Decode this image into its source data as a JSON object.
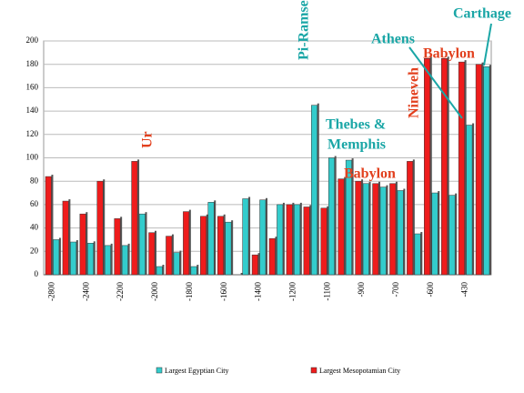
{
  "chart_data": {
    "type": "bar",
    "categories": [
      "-2800",
      null,
      "-2400",
      null,
      "-2200",
      null,
      "-2000",
      null,
      "-1800",
      null,
      "-1600",
      null,
      "-1400",
      null,
      "-1200",
      null,
      "-1100",
      null,
      "-900",
      null,
      "-700",
      null,
      "-600",
      null,
      "-430",
      null
    ],
    "series": [
      {
        "name": "Largest Egyptian City",
        "color": "#33cccc",
        "values": [
          30,
          28,
          27,
          25,
          25,
          52,
          7,
          19,
          7,
          62,
          45,
          65,
          64,
          60,
          60,
          145,
          100,
          98,
          78,
          75,
          72,
          35,
          70,
          68,
          128,
          178
        ]
      },
      {
        "name": "Largest Mesopotamian City",
        "color": "#ee1c1c",
        "values": [
          84,
          63,
          52,
          80,
          48,
          97,
          36,
          33,
          54,
          50,
          50,
          0,
          17,
          31,
          60,
          58,
          57,
          82,
          80,
          78,
          78,
          97,
          185,
          185,
          182,
          180
        ]
      }
    ],
    "ylim": [
      0,
      200
    ],
    "yticks": [
      0,
      20,
      40,
      60,
      80,
      100,
      120,
      140,
      160,
      180,
      200
    ],
    "grid": true,
    "annotations": [
      "Ur",
      "Pi-Ramses",
      "Thebes &",
      "Memphis",
      "Babylon",
      "Nineveh",
      "Athens",
      "Babylon",
      "Carthage"
    ]
  }
}
